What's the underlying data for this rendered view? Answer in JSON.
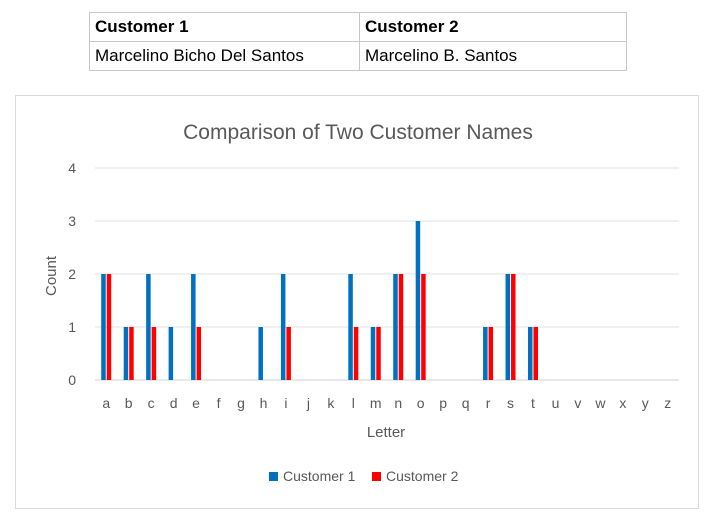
{
  "table": {
    "headers": [
      "Customer 1",
      "Customer 2"
    ],
    "row": [
      "Marcelino Bicho Del Santos",
      "Marcelino B. Santos"
    ]
  },
  "chart_data": {
    "type": "bar",
    "title": "Comparison of Two Customer Names",
    "xlabel": "Letter",
    "ylabel": "Count",
    "ylim": [
      0,
      4
    ],
    "yticks": [
      0,
      1,
      2,
      3,
      4
    ],
    "grid": true,
    "legend_position": "bottom",
    "categories": [
      "a",
      "b",
      "c",
      "d",
      "e",
      "f",
      "g",
      "h",
      "i",
      "j",
      "k",
      "l",
      "m",
      "n",
      "o",
      "p",
      "q",
      "r",
      "s",
      "t",
      "u",
      "v",
      "w",
      "x",
      "y",
      "z"
    ],
    "series": [
      {
        "name": "Customer 1",
        "color": "#0070c0",
        "values": [
          2,
          1,
          2,
          1,
          2,
          0,
          0,
          1,
          2,
          0,
          0,
          2,
          1,
          2,
          3,
          0,
          0,
          1,
          2,
          1,
          0,
          0,
          0,
          0,
          0,
          0
        ]
      },
      {
        "name": "Customer 2",
        "color": "#ff0000",
        "values": [
          2,
          1,
          1,
          0,
          1,
          0,
          0,
          0,
          1,
          0,
          0,
          1,
          1,
          2,
          2,
          0,
          0,
          1,
          2,
          1,
          0,
          0,
          0,
          0,
          0,
          0
        ]
      }
    ]
  }
}
